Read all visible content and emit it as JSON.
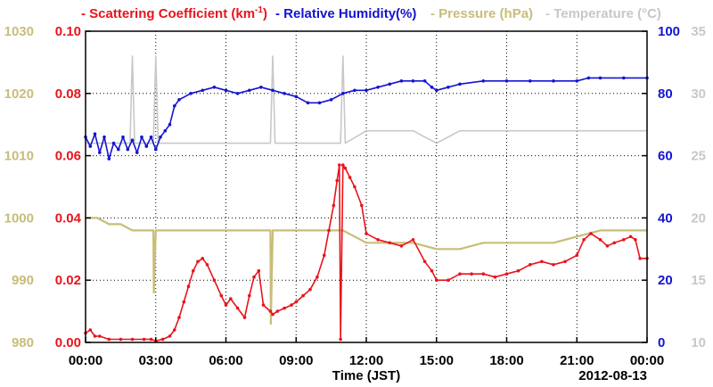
{
  "legend": {
    "scattering": {
      "text": "Scattering Coefficient (km",
      "sup": "-1",
      "close": ")",
      "color": "#e8141c"
    },
    "humidity": {
      "text": "Relative Humidity(%)",
      "color": "#1414d2"
    },
    "pressure": {
      "text": "Pressure (hPa)",
      "color": "#c8bd78"
    },
    "temperature": {
      "text": "Temperature (°C)",
      "color": "#c8c8c8"
    }
  },
  "chart_data": {
    "type": "line",
    "xlabel": "Time (JST)",
    "date_label": "2012-08-13",
    "x_ticks": [
      "00:00",
      "03:00",
      "06:00",
      "09:00",
      "12:00",
      "15:00",
      "18:00",
      "21:00",
      "00:00"
    ],
    "xlim": [
      0,
      24
    ],
    "grid": true,
    "axes": {
      "scattering": {
        "side": "left-inner",
        "ylim": [
          0,
          0.1
        ],
        "ticks": [
          "0.00",
          "0.02",
          "0.04",
          "0.06",
          "0.08",
          "0.10"
        ]
      },
      "pressure": {
        "side": "left-outer",
        "ylim": [
          980,
          1030
        ],
        "ticks": [
          "980",
          "990",
          "1000",
          "1010",
          "1020",
          "1030"
        ]
      },
      "humidity": {
        "side": "right-inner",
        "ylim": [
          0,
          100
        ],
        "ticks": [
          "0",
          "20",
          "40",
          "60",
          "80",
          "100"
        ]
      },
      "temperature": {
        "side": "right-outer",
        "ylim": [
          10,
          35
        ],
        "ticks": [
          "10",
          "15",
          "20",
          "25",
          "30",
          "35"
        ]
      }
    },
    "series": [
      {
        "name": "Scattering Coefficient (km-1)",
        "key": "scattering",
        "color": "#e8141c",
        "marker": true,
        "x": [
          0,
          0.2,
          0.4,
          0.6,
          1.0,
          1.5,
          2.0,
          2.5,
          2.8,
          3.0,
          3.3,
          3.6,
          3.8,
          4.0,
          4.2,
          4.4,
          4.6,
          4.8,
          5.0,
          5.2,
          5.5,
          5.8,
          6.0,
          6.2,
          6.5,
          6.8,
          7.0,
          7.2,
          7.4,
          7.6,
          7.9,
          8.0,
          8.2,
          8.5,
          8.8,
          9.0,
          9.3,
          9.6,
          9.9,
          10.2,
          10.4,
          10.6,
          10.75,
          10.85,
          10.9,
          11.0,
          11.1,
          11.3,
          11.5,
          11.8,
          12.0,
          12.5,
          13.0,
          13.5,
          14.0,
          14.5,
          14.8,
          15.0,
          15.5,
          16.0,
          16.5,
          17.0,
          17.5,
          18.0,
          18.5,
          19.0,
          19.5,
          20.0,
          20.5,
          21.0,
          21.3,
          21.6,
          22.0,
          22.3,
          22.6,
          23.0,
          23.3,
          23.5,
          23.7,
          24.0
        ],
        "values": [
          0.003,
          0.004,
          0.002,
          0.002,
          0.001,
          0.001,
          0.001,
          0.001,
          0.001,
          0.0005,
          0.001,
          0.002,
          0.004,
          0.008,
          0.013,
          0.018,
          0.023,
          0.026,
          0.027,
          0.025,
          0.02,
          0.015,
          0.012,
          0.014,
          0.011,
          0.008,
          0.015,
          0.021,
          0.023,
          0.012,
          0.01,
          0.009,
          0.01,
          0.011,
          0.012,
          0.013,
          0.015,
          0.017,
          0.021,
          0.028,
          0.036,
          0.044,
          0.052,
          0.057,
          0.001,
          0.057,
          0.056,
          0.053,
          0.05,
          0.044,
          0.035,
          0.033,
          0.032,
          0.031,
          0.033,
          0.026,
          0.023,
          0.02,
          0.02,
          0.022,
          0.022,
          0.022,
          0.021,
          0.022,
          0.023,
          0.025,
          0.026,
          0.025,
          0.026,
          0.028,
          0.033,
          0.035,
          0.033,
          0.031,
          0.032,
          0.033,
          0.034,
          0.033,
          0.027,
          0.027
        ]
      },
      {
        "name": "Relative Humidity(%)",
        "key": "humidity",
        "color": "#1414d2",
        "marker": true,
        "x": [
          0,
          0.2,
          0.4,
          0.6,
          0.8,
          1.0,
          1.2,
          1.4,
          1.6,
          1.8,
          2.0,
          2.2,
          2.4,
          2.6,
          2.8,
          3.0,
          3.2,
          3.4,
          3.6,
          3.8,
          4.0,
          4.5,
          5.0,
          5.5,
          6.0,
          6.5,
          7.0,
          7.5,
          8.0,
          8.5,
          9.0,
          9.5,
          10.0,
          10.5,
          11.0,
          11.5,
          12.0,
          12.5,
          13.0,
          13.5,
          14.0,
          14.5,
          14.8,
          15.0,
          15.5,
          16.0,
          17.0,
          18.0,
          19.0,
          20.0,
          21.0,
          21.5,
          22.0,
          23.0,
          24.0
        ],
        "values": [
          66,
          63,
          67,
          61,
          66,
          59,
          64,
          62,
          66,
          62,
          65,
          61,
          66,
          63,
          66,
          62,
          66,
          68,
          70,
          76,
          78,
          80,
          81,
          82,
          81,
          80,
          81,
          82,
          81,
          80,
          79,
          77,
          77,
          78,
          80,
          81,
          81,
          82,
          83,
          84,
          84,
          84,
          82,
          81,
          82,
          83,
          84,
          84,
          84,
          84,
          84,
          85,
          85,
          85,
          85
        ]
      },
      {
        "name": "Pressure (hPa)",
        "key": "pressure",
        "color": "#c8bd78",
        "marker": false,
        "x": [
          0,
          0.5,
          1.0,
          1.5,
          2.0,
          2.5,
          2.9,
          2.92,
          3.0,
          3.5,
          4.0,
          5.0,
          6.0,
          7.0,
          7.5,
          7.9,
          7.92,
          8.0,
          9.0,
          10.0,
          10.5,
          11.0,
          11.5,
          12.0,
          13.0,
          14.0,
          15.0,
          16.0,
          17.0,
          18.0,
          19.0,
          20.0,
          21.0,
          22.0,
          23.0,
          24.0
        ],
        "values": [
          1000,
          1000,
          999,
          999,
          998,
          998,
          998,
          988,
          998,
          998,
          998,
          998,
          998,
          998,
          998,
          998,
          983,
          998,
          998,
          998,
          998,
          998,
          997,
          996,
          996,
          996,
          995,
          995,
          996,
          996,
          996,
          996,
          997,
          998,
          998,
          998
        ]
      },
      {
        "name": "Temperature (°C)",
        "key": "temperature",
        "color": "#c8c8c8",
        "marker": false,
        "x": [
          0,
          1.0,
          1.9,
          2.0,
          2.1,
          2.9,
          3.0,
          3.1,
          4.0,
          5.0,
          6.0,
          7.0,
          7.9,
          8.0,
          8.1,
          9.0,
          10.0,
          10.9,
          11.0,
          11.1,
          12.0,
          13.0,
          14.0,
          15.0,
          16.0,
          17.0,
          18.0,
          19.0,
          20.0,
          21.0,
          22.0,
          23.0,
          24.0
        ],
        "values": [
          26,
          26,
          26,
          33,
          26,
          26,
          33,
          26,
          26,
          26,
          26,
          26,
          26,
          33,
          26,
          26,
          26,
          26,
          33,
          26,
          27,
          27,
          27,
          26,
          27,
          27,
          27,
          27,
          27,
          27,
          27,
          27,
          27
        ]
      }
    ]
  }
}
